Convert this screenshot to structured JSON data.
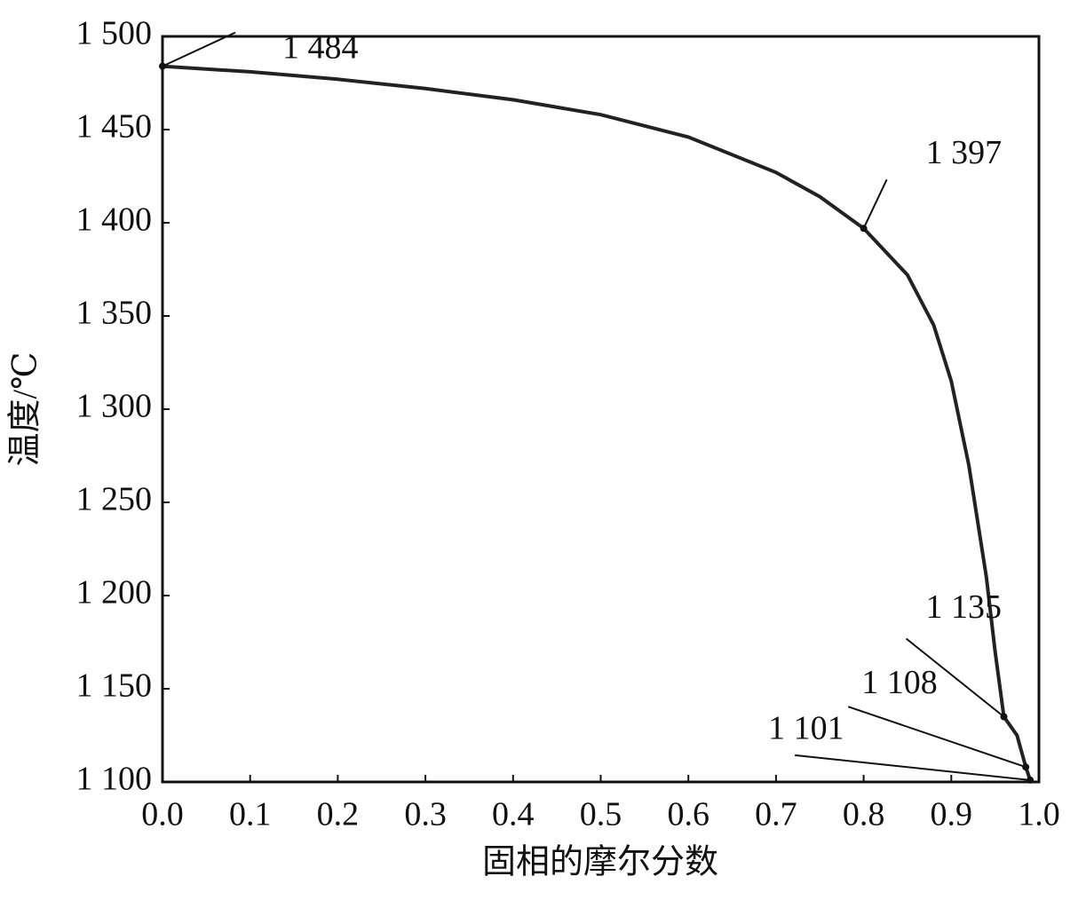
{
  "chart_data": {
    "type": "line",
    "xlabel": "固相的摩尔分数",
    "ylabel": "温度/℃",
    "x": [
      0,
      0.1,
      0.2,
      0.3,
      0.4,
      0.5,
      0.6,
      0.7,
      0.75,
      0.8,
      0.85,
      0.88,
      0.9,
      0.92,
      0.94,
      0.95,
      0.96,
      0.975,
      0.985,
      0.99
    ],
    "values": [
      1484,
      1481,
      1477,
      1472,
      1466,
      1458,
      1446,
      1427,
      1414,
      1397,
      1372,
      1345,
      1315,
      1270,
      1210,
      1170,
      1135,
      1125,
      1108,
      1101
    ],
    "color": "#222222",
    "xlim": [
      0,
      1
    ],
    "ylim": [
      1100,
      1500
    ],
    "xticks": [
      {
        "value": 0,
        "label": "0.0"
      },
      0.1,
      0.2,
      0.3,
      0.4,
      0.5,
      0.6,
      0.7,
      0.8,
      0.9,
      {
        "value": 1,
        "label": "1.0"
      }
    ],
    "yticks": [
      {
        "value": 1100,
        "label": "1 100"
      },
      {
        "value": 1150,
        "label": "1 150"
      },
      {
        "value": 1200,
        "label": "1 200"
      },
      {
        "value": 1250,
        "label": "1 250"
      },
      {
        "value": 1300,
        "label": "1 300"
      },
      {
        "value": 1350,
        "label": "1 350"
      },
      {
        "value": 1400,
        "label": "1 400"
      },
      {
        "value": 1450,
        "label": "1 450"
      },
      {
        "value": 1500,
        "label": "1 500"
      }
    ],
    "annotations": [
      {
        "x": 0,
        "y": 1484,
        "label": "1 484"
      },
      {
        "x": 0.8,
        "y": 1397,
        "label": "1 397"
      },
      {
        "x": 0.96,
        "y": 1135,
        "label": "1 135"
      },
      {
        "x": 0.985,
        "y": 1108,
        "label": "1 108"
      },
      {
        "x": 0.99,
        "y": 1101,
        "label": "1 101"
      }
    ]
  }
}
